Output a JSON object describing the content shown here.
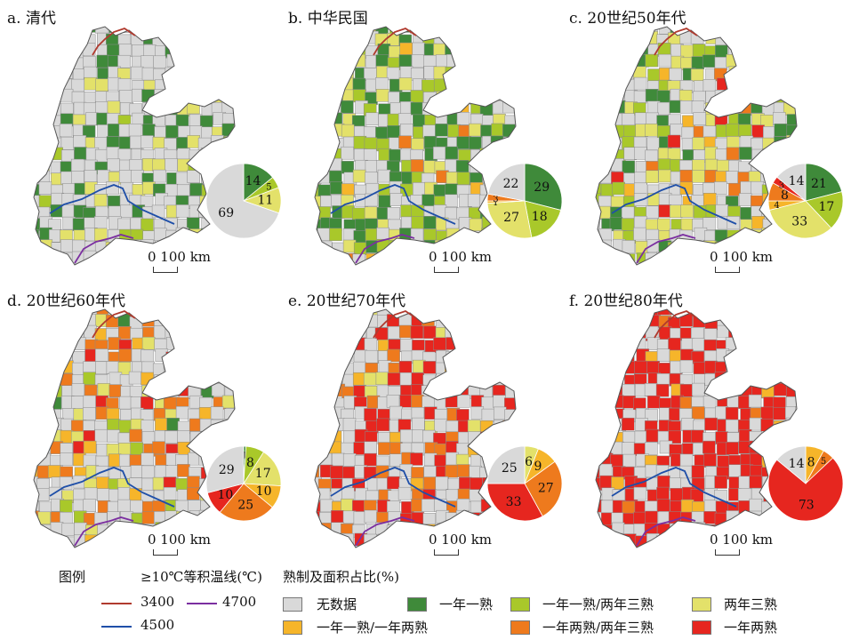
{
  "panels": [
    {
      "title": "a. 清代",
      "scale_label": "0  100 km",
      "pie": [
        {
          "v": 14,
          "cls": "c2"
        },
        {
          "v": 5,
          "cls": "c3"
        },
        {
          "v": 11,
          "cls": "c4"
        },
        {
          "v": 69,
          "cls": "c1"
        }
      ],
      "map_mix": {
        "c1": 0.7,
        "c2": 0.16,
        "c3": 0.04,
        "c4": 0.1,
        "c5": 0,
        "c6": 0,
        "c7": 0
      }
    },
    {
      "title": "b. 中华民国",
      "scale_label": "0  100 km",
      "pie": [
        {
          "v": 29,
          "cls": "c2"
        },
        {
          "v": 18,
          "cls": "c3"
        },
        {
          "v": 27,
          "cls": "c4"
        },
        {
          "v": 1,
          "cls": "c5"
        },
        {
          "v": 3,
          "cls": "c6"
        },
        {
          "v": 22,
          "cls": "c1"
        }
      ],
      "map_mix": {
        "c1": 0.45,
        "c2": 0.2,
        "c3": 0.17,
        "c4": 0.15,
        "c5": 0.02,
        "c6": 0.01,
        "c7": 0
      }
    },
    {
      "title": "c. 20世纪50年代",
      "scale_label": "0  100 km",
      "pie": [
        {
          "v": 21,
          "cls": "c2"
        },
        {
          "v": 17,
          "cls": "c3"
        },
        {
          "v": 33,
          "cls": "c4"
        },
        {
          "v": 4,
          "cls": "c5"
        },
        {
          "v": 8,
          "cls": "c6"
        },
        {
          "v": 3,
          "cls": "c7"
        },
        {
          "v": 14,
          "cls": "c1"
        }
      ],
      "map_mix": {
        "c1": 0.45,
        "c2": 0.14,
        "c3": 0.15,
        "c4": 0.18,
        "c5": 0.03,
        "c6": 0.03,
        "c7": 0.02
      }
    },
    {
      "title": "d. 20世纪60年代",
      "scale_label": "0  100 km",
      "pie": [
        {
          "v": 1,
          "cls": "c2"
        },
        {
          "v": 8,
          "cls": "c3"
        },
        {
          "v": 17,
          "cls": "c4"
        },
        {
          "v": 10,
          "cls": "c5"
        },
        {
          "v": 25,
          "cls": "c6"
        },
        {
          "v": 10,
          "cls": "c7"
        },
        {
          "v": 29,
          "cls": "c1"
        }
      ],
      "map_mix": {
        "c1": 0.55,
        "c2": 0.01,
        "c3": 0.05,
        "c4": 0.08,
        "c5": 0.07,
        "c6": 0.17,
        "c7": 0.07
      }
    },
    {
      "title": "e. 20世纪70年代",
      "scale_label": "0  100 km",
      "pie": [
        {
          "v": 6,
          "cls": "c4"
        },
        {
          "v": 9,
          "cls": "c5"
        },
        {
          "v": 27,
          "cls": "c6"
        },
        {
          "v": 33,
          "cls": "c7"
        },
        {
          "v": 25,
          "cls": "c1"
        }
      ],
      "map_mix": {
        "c1": 0.52,
        "c2": 0,
        "c3": 0,
        "c4": 0.04,
        "c5": 0.06,
        "c6": 0.16,
        "c7": 0.22
      }
    },
    {
      "title": "f. 20世纪80年代",
      "scale_label": "0  100 km",
      "pie": [
        {
          "v": 8,
          "cls": "c5"
        },
        {
          "v": 5,
          "cls": "c6"
        },
        {
          "v": 73,
          "cls": "c7"
        },
        {
          "v": 14,
          "cls": "c1"
        }
      ],
      "map_mix": {
        "c1": 0.45,
        "c2": 0,
        "c3": 0,
        "c4": 0,
        "c5": 0.05,
        "c6": 0.03,
        "c7": 0.47
      }
    }
  ],
  "legend": {
    "title": "图例",
    "isotherm_title": "≥10℃等积温线(℃)",
    "isotherms": [
      {
        "label": "3400",
        "color": "#b03a2e"
      },
      {
        "label": "4700",
        "color": "#7b2fa0"
      },
      {
        "label": "4500",
        "color": "#1f4fa8"
      }
    ],
    "category_title": "熟制及面积占比(%)",
    "categories": [
      {
        "key": "c1",
        "label": "无数据",
        "color": "#d9d9d9"
      },
      {
        "key": "c2",
        "label": "一年一熟",
        "color": "#3f8a3a"
      },
      {
        "key": "c3",
        "label": "一年一熟/两年三熟",
        "color": "#a9c82a"
      },
      {
        "key": "c4",
        "label": "两年三熟",
        "color": "#e3e16a"
      },
      {
        "key": "c5",
        "label": "一年一熟/一年两熟",
        "color": "#f6b52a"
      },
      {
        "key": "c6",
        "label": "一年两熟/两年三熟",
        "color": "#ee7a1d"
      },
      {
        "key": "c7",
        "label": "一年两熟",
        "color": "#e6261f"
      }
    ]
  }
}
